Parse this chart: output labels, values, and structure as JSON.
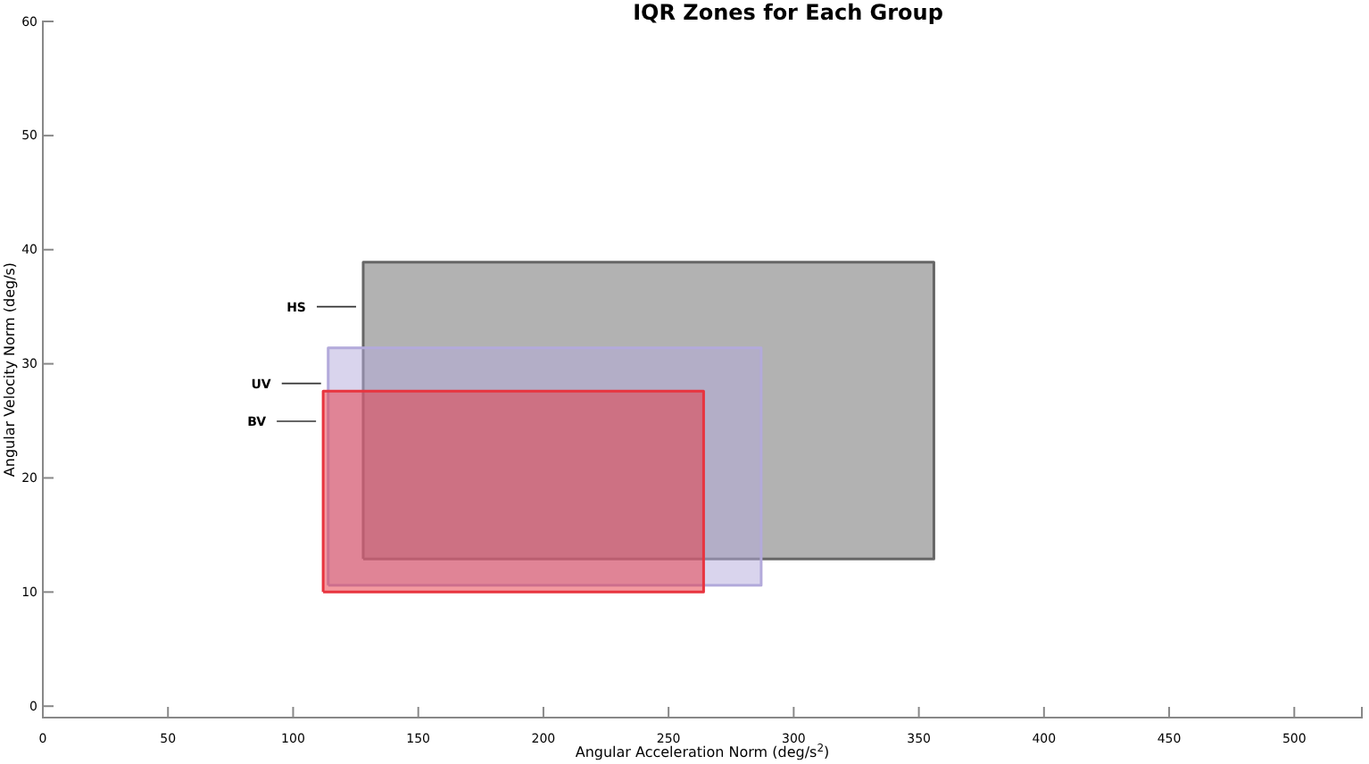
{
  "chart_data": {
    "type": "area",
    "title": "IQR Zones for Each Group",
    "xlabel": "Angular Acceleration Norm (deg/s$^{2}$)",
    "ylabel": "Angular Velocity Norm (deg/s)",
    "xlim": [
      0,
      527
    ],
    "ylim": [
      -1,
      60
    ],
    "xticks": [
      0,
      50,
      100,
      150,
      200,
      250,
      300,
      350,
      400,
      450,
      500
    ],
    "yticks": [
      0,
      10,
      20,
      30,
      40,
      50,
      60
    ],
    "series": [
      {
        "name": "HS",
        "color": "#666666",
        "x": [
          128,
          356,
          356,
          128,
          128
        ],
        "values": [
          12.9,
          12.9,
          38.9,
          38.9,
          12.9
        ]
      },
      {
        "name": "UV",
        "color": "#b3aadb",
        "x": [
          114,
          287,
          287,
          114,
          114
        ],
        "values": [
          10.6,
          10.6,
          31.4,
          31.4,
          10.6
        ]
      },
      {
        "name": "BV",
        "color": "#e8343f",
        "x": [
          112,
          264,
          264,
          112,
          112
        ],
        "values": [
          10.0,
          10.0,
          27.6,
          27.6,
          10.0
        ]
      }
    ]
  }
}
